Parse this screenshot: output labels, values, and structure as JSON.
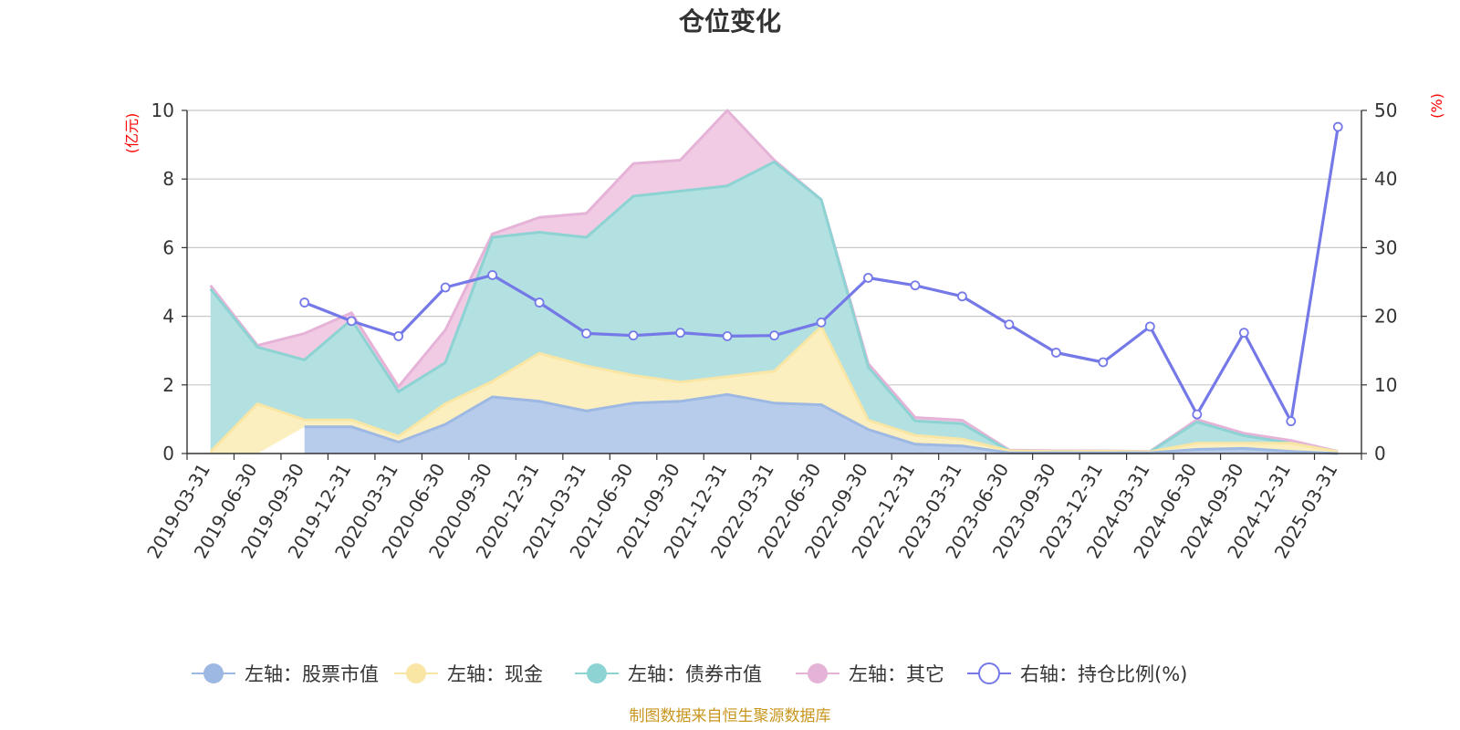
{
  "chart_data": {
    "type": "area",
    "title": "仓位变化",
    "y_left_unit": "(亿元)",
    "y_right_unit": "(%)",
    "ylim_left": [
      0,
      10
    ],
    "ylim_right": [
      0,
      50
    ],
    "y_left_ticks": [
      "0",
      "2",
      "4",
      "6",
      "8",
      "10"
    ],
    "y_right_ticks": [
      "0",
      "10",
      "20",
      "30",
      "40",
      "50"
    ],
    "categories": [
      "2019-03-31",
      "2019-06-30",
      "2019-09-30",
      "2019-12-31",
      "2020-03-31",
      "2020-06-30",
      "2020-09-30",
      "2020-12-31",
      "2021-03-31",
      "2021-06-30",
      "2021-09-30",
      "2021-12-31",
      "2022-03-31",
      "2022-06-30",
      "2022-09-30",
      "2022-12-31",
      "2023-03-31",
      "2023-06-30",
      "2023-09-30",
      "2023-12-31",
      "2024-03-31",
      "2024-06-30",
      "2024-09-30",
      "2024-12-31",
      "2025-03-31"
    ],
    "stacked_series": [
      {
        "name": "左轴：股票市值",
        "color": "#9db8e2",
        "fill": "#b7cbea",
        "values": [
          null,
          null,
          0.78,
          0.78,
          0.33,
          0.85,
          1.65,
          1.52,
          1.24,
          1.47,
          1.52,
          1.72,
          1.47,
          1.42,
          0.7,
          0.27,
          0.22,
          0.02,
          0.02,
          0.02,
          0.02,
          0.12,
          0.15,
          0.06,
          0.0
        ]
      },
      {
        "name": "左轴：现金",
        "color": "#f9e6a5",
        "fill": "#fcefbf",
        "values": [
          0.05,
          1.45,
          0.2,
          0.2,
          0.17,
          0.6,
          0.45,
          1.4,
          1.31,
          0.81,
          0.56,
          0.52,
          0.93,
          2.28,
          0.27,
          0.26,
          0.2,
          0.06,
          0.04,
          0.05,
          0.03,
          0.18,
          0.15,
          0.24,
          0.05
        ]
      },
      {
        "name": "左轴：债券市值",
        "color": "#8ed3d3",
        "fill": "#b3e0e0",
        "values": [
          4.75,
          1.65,
          1.75,
          2.92,
          1.3,
          1.2,
          4.2,
          3.53,
          3.75,
          5.22,
          5.57,
          5.56,
          6.1,
          3.7,
          1.55,
          0.42,
          0.45,
          0.0,
          0.0,
          0.0,
          0.0,
          0.62,
          0.22,
          0.0,
          0.0
        ]
      },
      {
        "name": "左轴：其它",
        "color": "#e6b3d8",
        "fill": "#f0cbe3",
        "values": [
          0.1,
          0.05,
          0.77,
          0.2,
          0.15,
          0.95,
          0.1,
          0.43,
          0.7,
          0.95,
          0.9,
          2.2,
          0.05,
          0.0,
          0.1,
          0.1,
          0.1,
          0.02,
          0.02,
          0.01,
          0.01,
          0.07,
          0.07,
          0.08,
          0.01
        ]
      }
    ],
    "line_series": {
      "name": "右轴：持仓比例(%)",
      "color": "#7579e8",
      "values": [
        null,
        null,
        22.0,
        19.3,
        17.1,
        24.2,
        26.0,
        22.0,
        17.5,
        17.2,
        17.6,
        17.1,
        17.2,
        19.1,
        25.6,
        24.5,
        22.9,
        18.8,
        14.7,
        13.3,
        18.5,
        5.7,
        17.6,
        4.7,
        47.6
      ]
    },
    "legend_position": "bottom",
    "grid": true
  },
  "source": "制图数据来自恒生聚源数据库"
}
